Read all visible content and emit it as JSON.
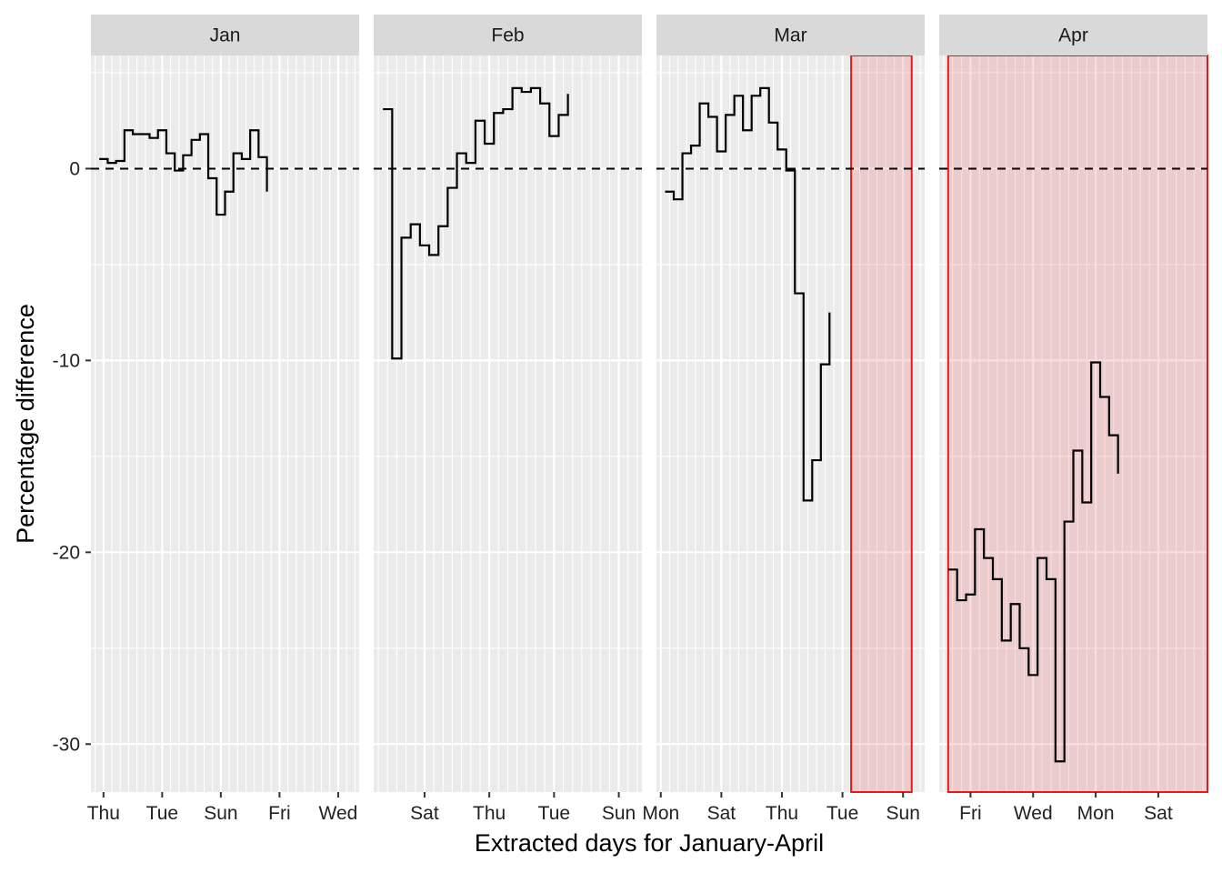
{
  "chart_data": {
    "type": "line",
    "step": true,
    "xlabel": "Extracted days for January-April",
    "ylabel": "Percentage difference",
    "ylim": [
      -32.5,
      5.9
    ],
    "y_ticks": [
      0,
      -10,
      -20,
      -30
    ],
    "y_tick_labels": [
      "0",
      "-10",
      "-20",
      "-30"
    ],
    "reference_line": {
      "y": 0,
      "style": "dashed"
    },
    "panel_bg": "#ebebeb",
    "strip_bg": "#d9d9d9",
    "highlight_color": "#e41a1c",
    "line_color": "#000000",
    "panels": [
      {
        "name": "Jan",
        "x_range": [
          0.5,
          32.5
        ],
        "x_ticks": [
          2,
          9,
          16,
          23,
          30
        ],
        "x_tick_labels": [
          "Thu",
          "Tue",
          "Sun",
          "Fri",
          "Wed"
        ],
        "values": [
          0.5,
          0.3,
          0.4,
          2.0,
          1.8,
          1.8,
          1.6,
          2.0,
          0.8,
          -0.1,
          0.7,
          1.5,
          1.8,
          -0.5,
          -2.4,
          -1.2,
          0.8,
          0.5,
          2.0,
          0.6,
          -1.2
        ]
      },
      {
        "name": "Feb",
        "x_range": [
          0.5,
          29.5
        ],
        "x_ticks": [
          6,
          13,
          20,
          27
        ],
        "x_tick_labels": [
          "Sat",
          "Thu",
          "Tue",
          "Sun"
        ],
        "values": [
          3.1,
          -9.9,
          -3.6,
          -2.9,
          -4.0,
          -4.5,
          -3.0,
          -1.0,
          0.8,
          0.3,
          2.5,
          1.3,
          2.9,
          3.1,
          4.2,
          4.0,
          4.2,
          3.4,
          1.7,
          2.8,
          3.9
        ]
      },
      {
        "name": "Mar",
        "x_range": [
          0.5,
          31.5
        ],
        "x_ticks": [
          1,
          8,
          15,
          22,
          29
        ],
        "x_tick_labels": [
          "Mon",
          "Sat",
          "Thu",
          "Tue",
          "Sun"
        ],
        "values": [
          -1.2,
          -1.6,
          0.8,
          1.2,
          3.4,
          2.7,
          0.9,
          2.8,
          3.8,
          2.0,
          3.8,
          4.2,
          2.4,
          1.0,
          -0.1,
          -6.5,
          -17.3,
          -15.2,
          -10.2,
          -7.5
        ],
        "highlight_x": [
          23,
          30
        ]
      },
      {
        "name": "Apr",
        "x_range": [
          0.5,
          30.5
        ],
        "x_ticks": [
          4,
          11,
          18,
          25
        ],
        "x_tick_labels": [
          "Fri",
          "Wed",
          "Mon",
          "Sat"
        ],
        "values": [
          -20.9,
          -22.5,
          -22.2,
          -18.8,
          -20.3,
          -21.4,
          -24.6,
          -22.7,
          -25.0,
          -26.4,
          -20.3,
          -21.4,
          -30.9,
          -18.4,
          -14.7,
          -17.4,
          -10.1,
          -11.9,
          -13.9,
          -15.9
        ],
        "highlight_x": [
          1.5,
          30.5
        ]
      }
    ]
  }
}
